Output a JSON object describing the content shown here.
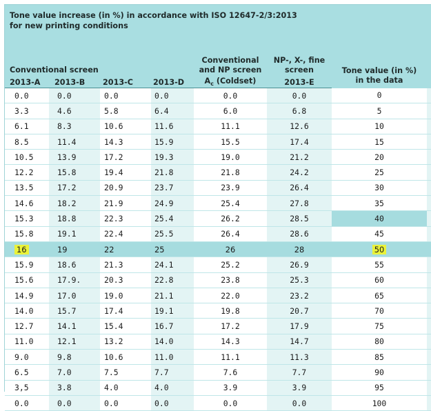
{
  "title_line1": "Tone value increase (in %) in accordance with ISO 12647-2/3:2013",
  "title_line2": "for new printing conditions",
  "group_conventional": "Conventional screen",
  "group_conv_np_line1": "Conventional",
  "group_conv_np_line2": "and NP screen",
  "group_np_line1": "NP-, X-, fine",
  "group_np_line2": "screen",
  "tone_header_line1": "Tone value (in %)",
  "tone_header_line2": "in the data",
  "col_a": "2013-A",
  "col_b": "2013-B",
  "col_c": "2013-C",
  "col_d": "2013-D",
  "col_ac_base": "A",
  "col_ac_sub": "c",
  "col_ac_rest": " (Coldset)",
  "col_e": "2013-E",
  "rows": [
    [
      "0.0",
      "0.0",
      "0.0",
      "0.0",
      "0.0",
      "0.0",
      "0"
    ],
    [
      "3.3",
      "4.6",
      "5.8",
      "6.4",
      "6.0",
      "6.8",
      "5"
    ],
    [
      "6.1",
      "8.3",
      "10.6",
      "11.6",
      "11.1",
      "12.6",
      "10"
    ],
    [
      "8.5",
      "11.4",
      "14.3",
      "15.9",
      "15.5",
      "17.4",
      "15"
    ],
    [
      "10.5",
      "13.9",
      "17.2",
      "19.3",
      "19.0",
      "21.2",
      "20"
    ],
    [
      "12.2",
      "15.8",
      "19.4",
      "21.8",
      "21.8",
      "24.2",
      "25"
    ],
    [
      "13.5",
      "17.2",
      "20.9",
      "23.7",
      "23.9",
      "26.4",
      "30"
    ],
    [
      "14.6",
      "18.2",
      "21.9",
      "24.9",
      "25.4",
      "27.8",
      "35"
    ],
    [
      "15.3",
      "18.8",
      "22.3",
      "25.4",
      "26.2",
      "28.5",
      "40"
    ],
    [
      "15.8",
      "19.1",
      "22.4",
      "25.5",
      "26.4",
      "28.6",
      "45"
    ],
    [
      "16",
      "19",
      "22",
      "25",
      "26",
      "28",
      "50"
    ],
    [
      "15.9",
      "18.6",
      "21.3",
      "24.1",
      "25.2",
      "26.9",
      "55"
    ],
    [
      "15.6",
      "17.9.",
      "20.3",
      "22.8",
      "23.8",
      "25.3",
      "60"
    ],
    [
      "14.9",
      "17.0",
      "19.0",
      "21.1",
      "22.0",
      "23.2",
      "65"
    ],
    [
      "14.0",
      "15.7",
      "17.4",
      "19.1",
      "19.8",
      "20.7",
      "70"
    ],
    [
      "12.7",
      "14.1",
      "15.4",
      "16.7",
      "17.2",
      "17.9",
      "75"
    ],
    [
      "11.0",
      "12.1",
      "13.2",
      "14.0",
      "14.3",
      "14.7",
      "80"
    ],
    [
      "9.0",
      "9.8",
      "10.6",
      "11.0",
      "11.1",
      "11.3",
      "85"
    ],
    [
      "6.5",
      "7.0",
      "7.5",
      "7.7",
      "7.6",
      "7.7",
      "90"
    ],
    [
      "3,5",
      "3.8",
      "4.0",
      "4.0",
      "3.9",
      "3.9",
      "95"
    ],
    [
      "0.0",
      "0.0",
      "0.0",
      "0.0",
      "0.0",
      "0.0",
      "100"
    ]
  ],
  "highlight_color": "#eaf23a"
}
